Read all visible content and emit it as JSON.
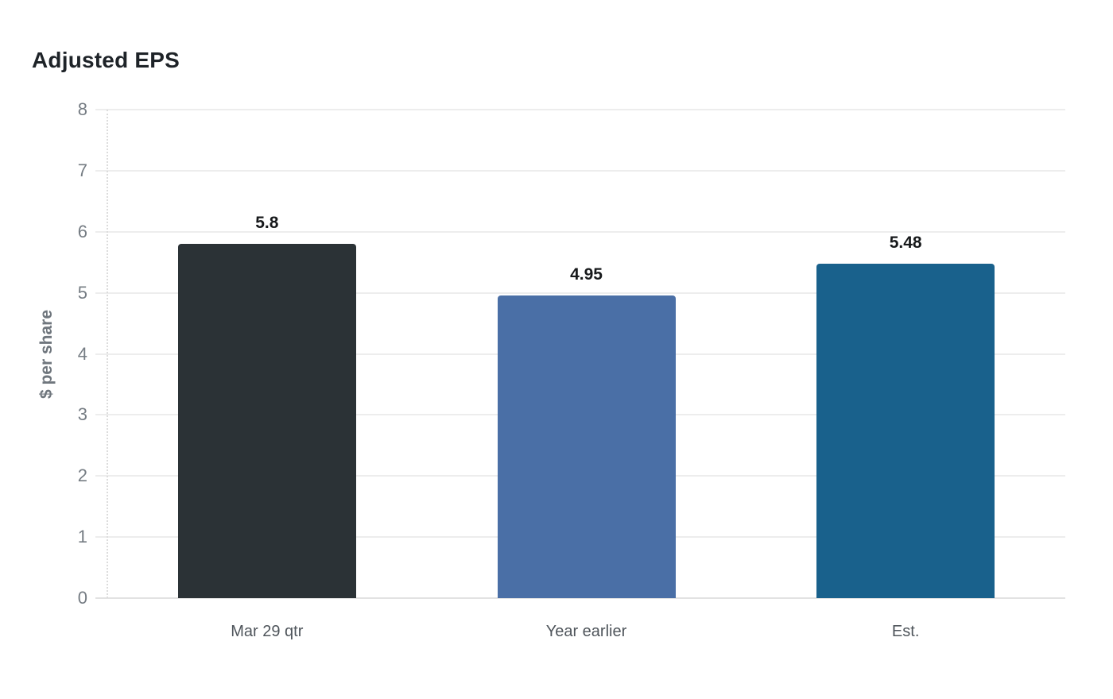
{
  "title": "Adjusted EPS",
  "chart_data": {
    "type": "bar",
    "title": "Adjusted EPS",
    "categories": [
      "Mar 29 qtr",
      "Year earlier",
      "Est."
    ],
    "values": [
      5.8,
      4.95,
      5.48
    ],
    "value_labels": [
      "5.8",
      "4.95",
      "5.48"
    ],
    "bar_colors": [
      "#2b3236",
      "#4a6fa6",
      "#19618c"
    ],
    "xlabel": "",
    "ylabel": "$ per share",
    "ylim": [
      0,
      8
    ],
    "yticks": [
      0,
      1,
      2,
      3,
      4,
      5,
      6,
      7,
      8
    ],
    "grid": "horizontal",
    "legend": "none"
  },
  "colors": {
    "title_text": "#1e2328",
    "axis_text": "#757c83",
    "axis_title_text": "#6f767d",
    "category_text": "#4f555b",
    "value_label_text": "#17191b",
    "gridline": "#ededed",
    "background": "#ffffff"
  }
}
